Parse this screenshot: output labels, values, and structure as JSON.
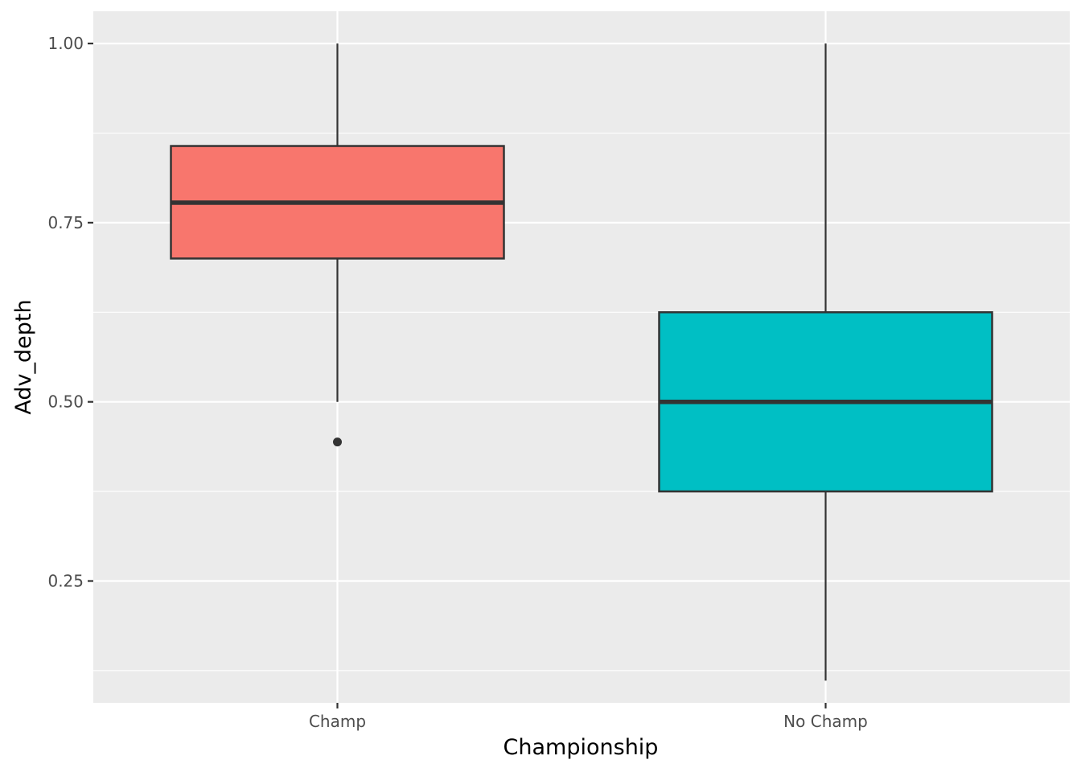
{
  "chart_data": {
    "type": "boxplot",
    "xlabel": "Championship",
    "ylabel": "Adv_depth",
    "categories": [
      "Champ",
      "No Champ"
    ],
    "ylim": [
      0.08,
      1.045
    ],
    "y_ticks": [
      0.25,
      0.5,
      0.75,
      1.0
    ],
    "y_tick_labels": [
      "0.25",
      "0.50",
      "0.75",
      "1.00"
    ],
    "y_minor_ticks": [
      0.125,
      0.375,
      0.625,
      0.875
    ],
    "grid": true,
    "legend": "none",
    "boxes": [
      {
        "category": "Champ",
        "whisker_low": 0.5,
        "q1": 0.7,
        "median": 0.778,
        "q3": 0.857,
        "whisker_high": 1.0,
        "outliers": [
          0.444
        ],
        "color": "#F8766D"
      },
      {
        "category": "No Champ",
        "whisker_low": 0.111,
        "q1": 0.375,
        "median": 0.5,
        "q3": 0.625,
        "whisker_high": 1.0,
        "outliers": [],
        "color": "#00BFC4"
      }
    ]
  },
  "colors": {
    "panel_background": "#EBEBEB",
    "grid": "#FFFFFF",
    "box_outline": "#333333"
  }
}
